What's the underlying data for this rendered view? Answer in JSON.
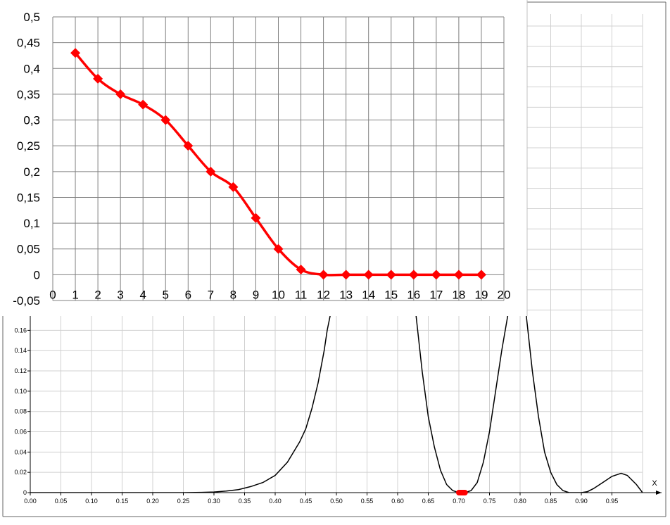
{
  "chart_data": [
    {
      "type": "line",
      "role": "background-plot",
      "xlabel": "X",
      "ylabel": "",
      "xlim": [
        0,
        1.0
      ],
      "ylim": [
        0,
        0.17
      ],
      "grid": true,
      "x_ticks": [
        "0.00",
        "0.05",
        "0.10",
        "0.15",
        "0.20",
        "0.25",
        "0.30",
        "0.35",
        "0.40",
        "0.45",
        "0.50",
        "0.55",
        "0.60",
        "0.65",
        "0.70",
        "0.75",
        "0.80",
        "0.85",
        "0.90",
        "0.95"
      ],
      "y_ticks": [
        "0",
        "0.02",
        "0.04",
        "0.06",
        "0.08",
        "0.10",
        "0.12",
        "0.14",
        "0.16"
      ],
      "series": [
        {
          "color": "#000000",
          "points": [
            [
              0.0,
              0
            ],
            [
              0.05,
              0
            ],
            [
              0.1,
              0
            ],
            [
              0.15,
              0
            ],
            [
              0.2,
              0
            ],
            [
              0.25,
              0
            ],
            [
              0.28,
              0.0003
            ],
            [
              0.3,
              0.0006
            ],
            [
              0.32,
              0.0015
            ],
            [
              0.34,
              0.003
            ],
            [
              0.36,
              0.006
            ],
            [
              0.38,
              0.01
            ],
            [
              0.4,
              0.017
            ],
            [
              0.42,
              0.03
            ],
            [
              0.44,
              0.05
            ],
            [
              0.45,
              0.063
            ],
            [
              0.46,
              0.083
            ],
            [
              0.47,
              0.108
            ],
            [
              0.48,
              0.14
            ],
            [
              0.485,
              0.16
            ],
            [
              0.49,
              0.175
            ]
          ]
        },
        {
          "color": "#000000",
          "points": [
            [
              0.63,
              0.175
            ],
            [
              0.64,
              0.12
            ],
            [
              0.65,
              0.075
            ],
            [
              0.66,
              0.045
            ],
            [
              0.67,
              0.022
            ],
            [
              0.68,
              0.008
            ],
            [
              0.69,
              0.002
            ],
            [
              0.7,
              0
            ],
            [
              0.71,
              0
            ],
            [
              0.72,
              0.002
            ],
            [
              0.73,
              0.01
            ],
            [
              0.74,
              0.03
            ],
            [
              0.75,
              0.06
            ],
            [
              0.76,
              0.1
            ],
            [
              0.77,
              0.14
            ],
            [
              0.78,
              0.175
            ]
          ]
        },
        {
          "color": "#000000",
          "points": [
            [
              0.81,
              0.175
            ],
            [
              0.82,
              0.12
            ],
            [
              0.83,
              0.075
            ],
            [
              0.84,
              0.04
            ],
            [
              0.85,
              0.02
            ],
            [
              0.86,
              0.008
            ],
            [
              0.87,
              0.002
            ],
            [
              0.88,
              0
            ],
            [
              0.9,
              0
            ],
            [
              0.91,
              0.001
            ],
            [
              0.92,
              0.004
            ],
            [
              0.935,
              0.01
            ],
            [
              0.95,
              0.016
            ],
            [
              0.965,
              0.019
            ],
            [
              0.975,
              0.017
            ],
            [
              0.99,
              0.008
            ],
            [
              1.0,
              0
            ]
          ]
        }
      ],
      "highlight": {
        "color": "#ff0000",
        "x_from": 0.7,
        "x_to": 0.71,
        "y": 0
      }
    },
    {
      "type": "line",
      "role": "foreground-plot",
      "xlabel": "",
      "ylabel": "",
      "xlim": [
        0,
        20
      ],
      "ylim": [
        -0.05,
        0.5
      ],
      "grid": true,
      "x_ticks": [
        "0",
        "1",
        "2",
        "3",
        "4",
        "5",
        "6",
        "7",
        "8",
        "9",
        "10",
        "11",
        "12",
        "13",
        "14",
        "15",
        "16",
        "17",
        "18",
        "19",
        "20"
      ],
      "y_ticks": [
        "-0,05",
        "0",
        "0,05",
        "0,1",
        "0,15",
        "0,2",
        "0,25",
        "0,3",
        "0,35",
        "0,4",
        "0,45",
        "0,5"
      ],
      "series": [
        {
          "color": "#ff0000",
          "marker": "diamond",
          "x": [
            1,
            2,
            3,
            4,
            5,
            6,
            7,
            8,
            9,
            10,
            11,
            12,
            13,
            14,
            15,
            16,
            17,
            18,
            19
          ],
          "values": [
            0.43,
            0.38,
            0.35,
            0.33,
            0.3,
            0.25,
            0.2,
            0.17,
            0.11,
            0.05,
            0.01,
            0,
            0,
            0,
            0,
            0,
            0,
            0,
            0
          ]
        }
      ]
    }
  ]
}
